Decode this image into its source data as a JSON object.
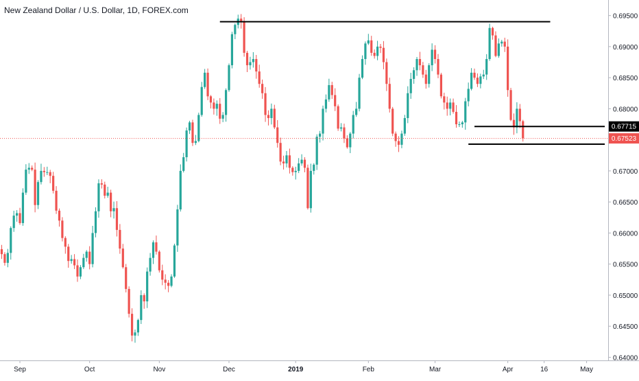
{
  "title": "New Zealand Dollar / U.S. Dollar, 1D, FOREX.com",
  "colors": {
    "up": "#26a69a",
    "down": "#ef5350",
    "axis": "#b2b5be",
    "text": "#131722",
    "level": "#000000",
    "last_price_line": "#ef5350"
  },
  "chart_data": {
    "type": "candlestick",
    "title": "New Zealand Dollar / U.S. Dollar, 1D, FOREX.com",
    "symbol": "NZDUSD",
    "interval": "1D",
    "ylim": [
      0.6395,
      0.6975
    ],
    "y_ticks": [
      "0.69500",
      "0.69000",
      "0.68500",
      "0.68000",
      "0.67000",
      "0.66500",
      "0.66000",
      "0.65500",
      "0.65000",
      "0.64500",
      "0.64000"
    ],
    "x_tick_labels": [
      "Sep",
      "Oct",
      "Nov",
      "Dec",
      "2019",
      "Feb",
      "Mar",
      "Apr",
      "16",
      "May"
    ],
    "x_tick_positions": [
      6,
      29,
      52,
      75,
      97,
      121,
      143,
      167,
      179,
      193
    ],
    "price_labels": [
      {
        "text": "0.67715",
        "value": 0.67715,
        "style": "level"
      },
      {
        "text": "0.67523",
        "value": 0.67523,
        "style": "last"
      }
    ],
    "horizontal_levels": [
      {
        "value": 0.694,
        "from": 72,
        "to": 181
      },
      {
        "value": 0.67715,
        "from": 156,
        "to": 199
      },
      {
        "value": 0.6743,
        "from": 154,
        "to": 199
      }
    ],
    "last_price": 0.67523,
    "closes": [
      0.6566,
      0.6552,
      0.6568,
      0.6608,
      0.6628,
      0.6632,
      0.6616,
      0.6665,
      0.6702,
      0.6705,
      0.6702,
      0.6645,
      0.6682,
      0.67,
      0.6698,
      0.6698,
      0.6692,
      0.6668,
      0.6636,
      0.662,
      0.6592,
      0.6578,
      0.6555,
      0.6558,
      0.6548,
      0.653,
      0.6545,
      0.656,
      0.657,
      0.655,
      0.66,
      0.6635,
      0.668,
      0.6678,
      0.666,
      0.6665,
      0.6635,
      0.664,
      0.6605,
      0.6575,
      0.6545,
      0.651,
      0.647,
      0.6435,
      0.644,
      0.646,
      0.65,
      0.649,
      0.6538,
      0.656,
      0.6585,
      0.657,
      0.654,
      0.6525,
      0.652,
      0.6515,
      0.653,
      0.658,
      0.6638,
      0.67,
      0.6722,
      0.6765,
      0.6778,
      0.6745,
      0.6748,
      0.679,
      0.6835,
      0.6858,
      0.682,
      0.681,
      0.68,
      0.6808,
      0.6784,
      0.679,
      0.683,
      0.687,
      0.692,
      0.6935,
      0.6945,
      0.694,
      0.689,
      0.687,
      0.6875,
      0.688,
      0.686,
      0.684,
      0.6825,
      0.679,
      0.6785,
      0.68,
      0.677,
      0.6745,
      0.6715,
      0.6712,
      0.6725,
      0.6705,
      0.6698,
      0.67,
      0.6712,
      0.6718,
      0.6705,
      0.664,
      0.67,
      0.671,
      0.6755,
      0.676,
      0.68,
      0.6815,
      0.6838,
      0.6822,
      0.6804,
      0.6768,
      0.677,
      0.6752,
      0.6738,
      0.676,
      0.679,
      0.68,
      0.685,
      0.688,
      0.6905,
      0.691,
      0.689,
      0.6885,
      0.69,
      0.6898,
      0.6875,
      0.684,
      0.68,
      0.676,
      0.6748,
      0.6742,
      0.676,
      0.6785,
      0.6825,
      0.6848,
      0.6862,
      0.688,
      0.687,
      0.6855,
      0.684,
      0.687,
      0.6895,
      0.688,
      0.6855,
      0.682,
      0.681,
      0.68,
      0.681,
      0.6795,
      0.6775,
      0.6775,
      0.6778,
      0.6812,
      0.6832,
      0.6858,
      0.685,
      0.684,
      0.6852,
      0.6855,
      0.688,
      0.693,
      0.6918,
      0.6885,
      0.6905,
      0.6908,
      0.69,
      0.683,
      0.6782,
      0.677,
      0.68,
      0.678,
      0.67523
    ]
  }
}
